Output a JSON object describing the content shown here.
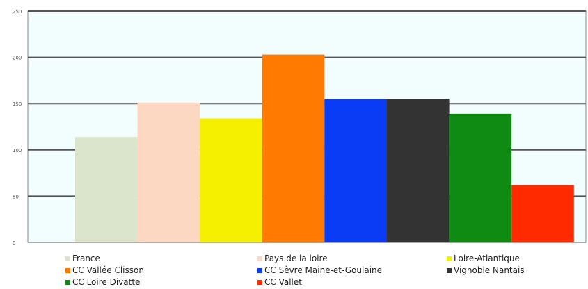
{
  "chart_data": {
    "type": "bar",
    "title": "",
    "xlabel": "",
    "ylabel": "",
    "ylim": [
      0,
      250
    ],
    "yticks": [
      0,
      50,
      100,
      150,
      200,
      250
    ],
    "grid": true,
    "legend_position": "bottom",
    "series": [
      {
        "name": "France",
        "value": 114,
        "color": "#dbe5cc"
      },
      {
        "name": "Pays de la loire",
        "value": 151,
        "color": "#fcd8c2"
      },
      {
        "name": "Loire-Atlantique",
        "value": 134,
        "color": "#f5f000"
      },
      {
        "name": "CC Vallée Clisson",
        "value": 203,
        "color": "#ff7a00"
      },
      {
        "name": "CC Sèvre Maine-et-Goulaine",
        "value": 155,
        "color": "#0a3cf5"
      },
      {
        "name": "Vignoble Nantais",
        "value": 155,
        "color": "#333333"
      },
      {
        "name": "CC Loire Divatte",
        "value": 139,
        "color": "#0f8a12"
      },
      {
        "name": "CC Vallet",
        "value": 62,
        "color": "#ff2a00"
      }
    ]
  }
}
